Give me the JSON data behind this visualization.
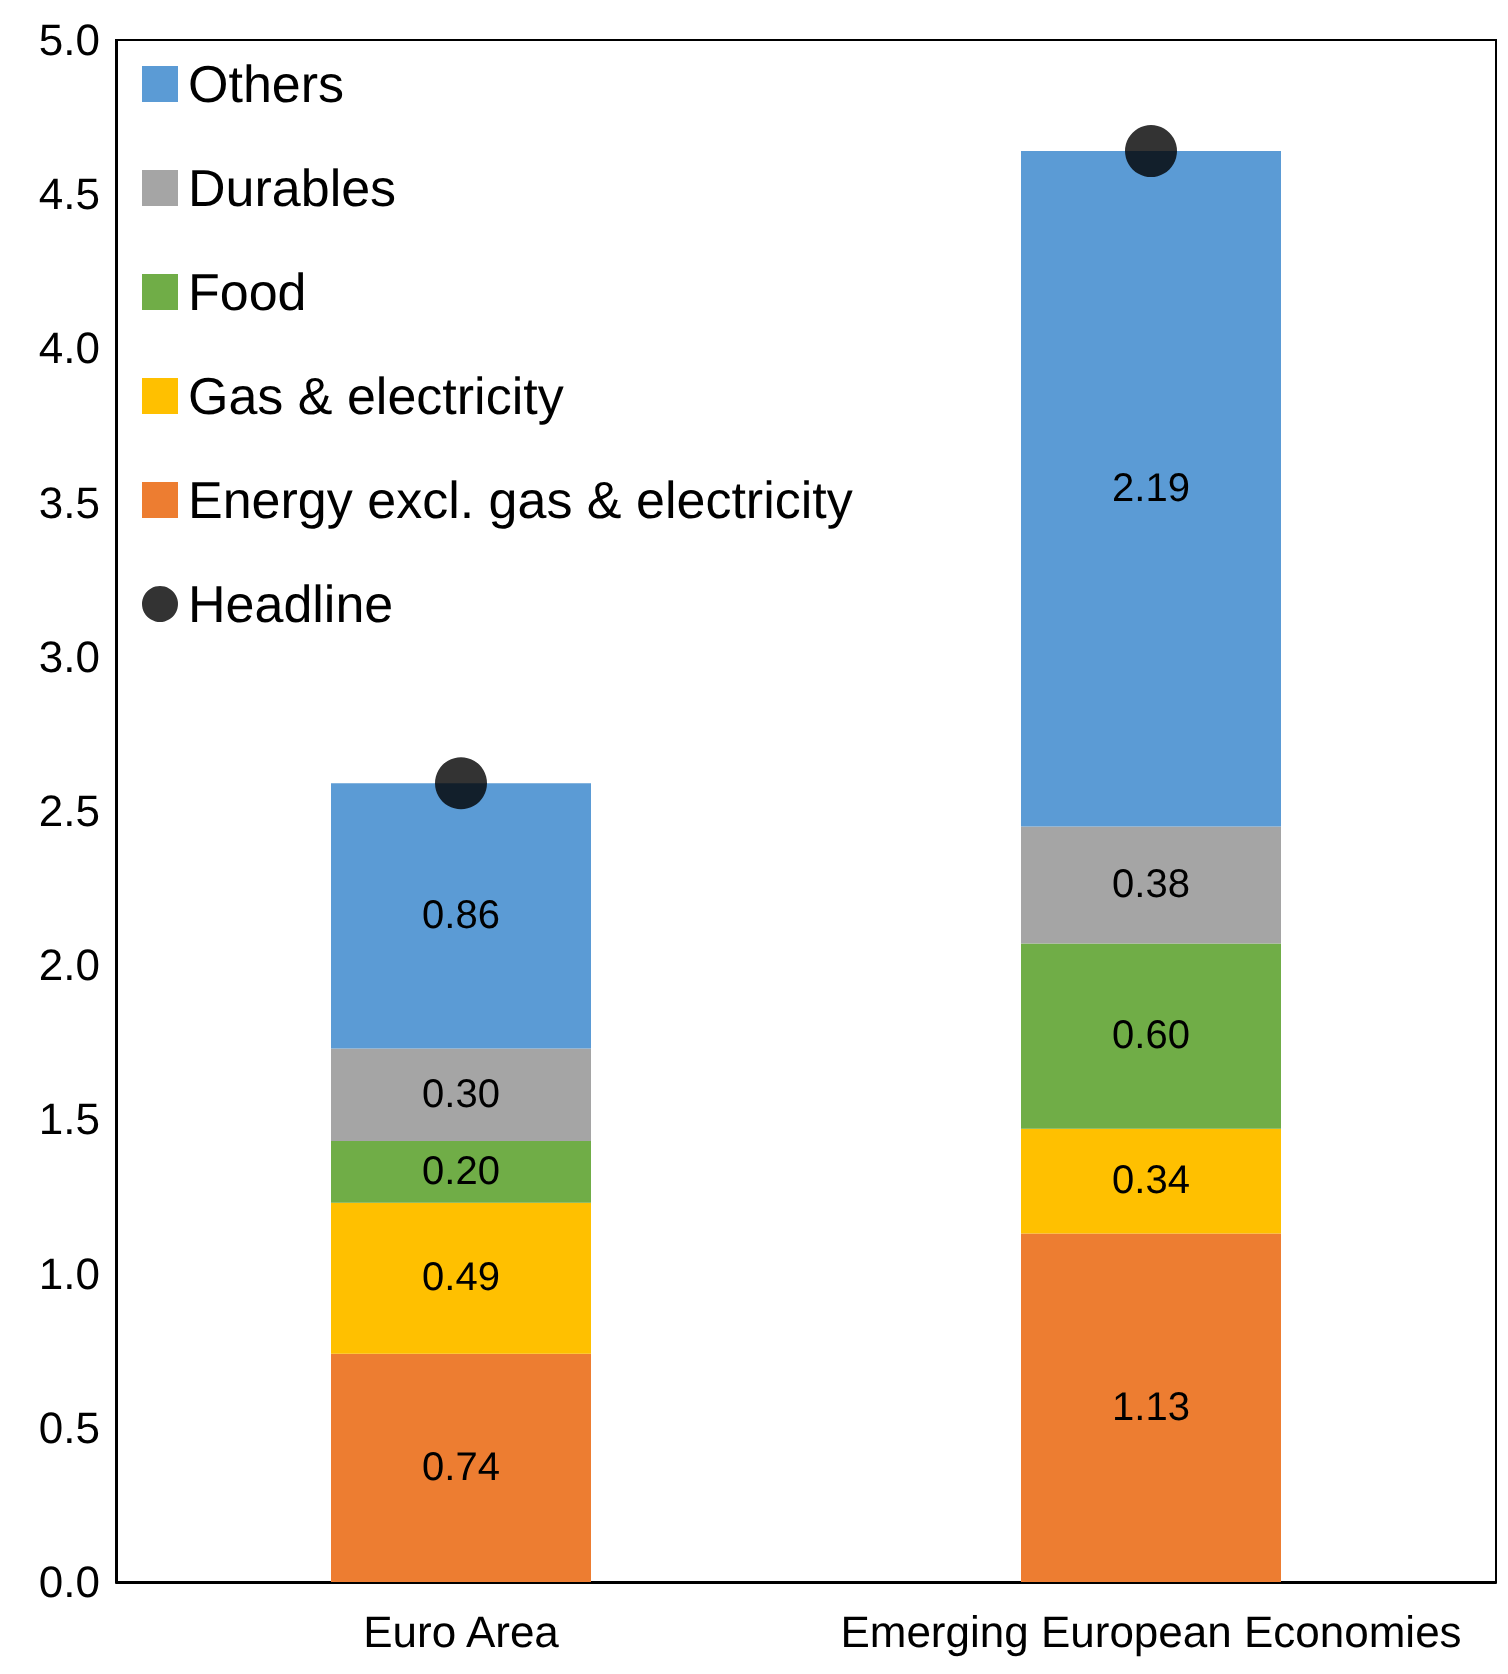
{
  "chart_data": {
    "type": "bar",
    "stacked": true,
    "categories": [
      "Euro Area",
      "Emerging European Economies"
    ],
    "ylim": [
      0,
      5
    ],
    "yticks": [
      {
        "value": 0,
        "label": "0.0"
      },
      0.5,
      {
        "value": 1,
        "label": "1.0"
      },
      1.5,
      {
        "value": 2,
        "label": "2.0"
      },
      2.5,
      {
        "value": 3,
        "label": "3.0"
      },
      3.5,
      {
        "value": 4,
        "label": "4.0"
      },
      4.5,
      {
        "value": 5,
        "label": "5.0"
      }
    ],
    "grid": false,
    "legend": "top left",
    "series": [
      {
        "name": "Energy excl. gas & electricity",
        "color": "#ed7d31",
        "values": [
          0.74,
          1.13
        ],
        "value_labels": [
          "0.74",
          "1.13"
        ]
      },
      {
        "name": "Gas & electricity",
        "color": "#ffc000",
        "values": [
          0.49,
          0.34
        ],
        "value_labels": [
          "0.49",
          "0.34"
        ]
      },
      {
        "name": "Food",
        "color": "#70ad47",
        "values": [
          0.2,
          0.6
        ],
        "value_labels": [
          "0.20",
          "0.60"
        ]
      },
      {
        "name": "Durables",
        "color": "#a5a5a5",
        "values": [
          0.3,
          0.38
        ],
        "value_labels": [
          "0.30",
          "0.38"
        ]
      },
      {
        "name": "Others",
        "color": "#5b9bd5",
        "values": [
          0.86,
          2.19
        ],
        "value_labels": [
          "0.86",
          "2.19"
        ]
      },
      {
        "name": "Headline",
        "type": "scatter",
        "marker": "circle",
        "color": "#000000",
        "x": [
          "Euro Area",
          "Emerging European Economies"
        ],
        "values": [
          2.59,
          4.64
        ]
      }
    ]
  }
}
